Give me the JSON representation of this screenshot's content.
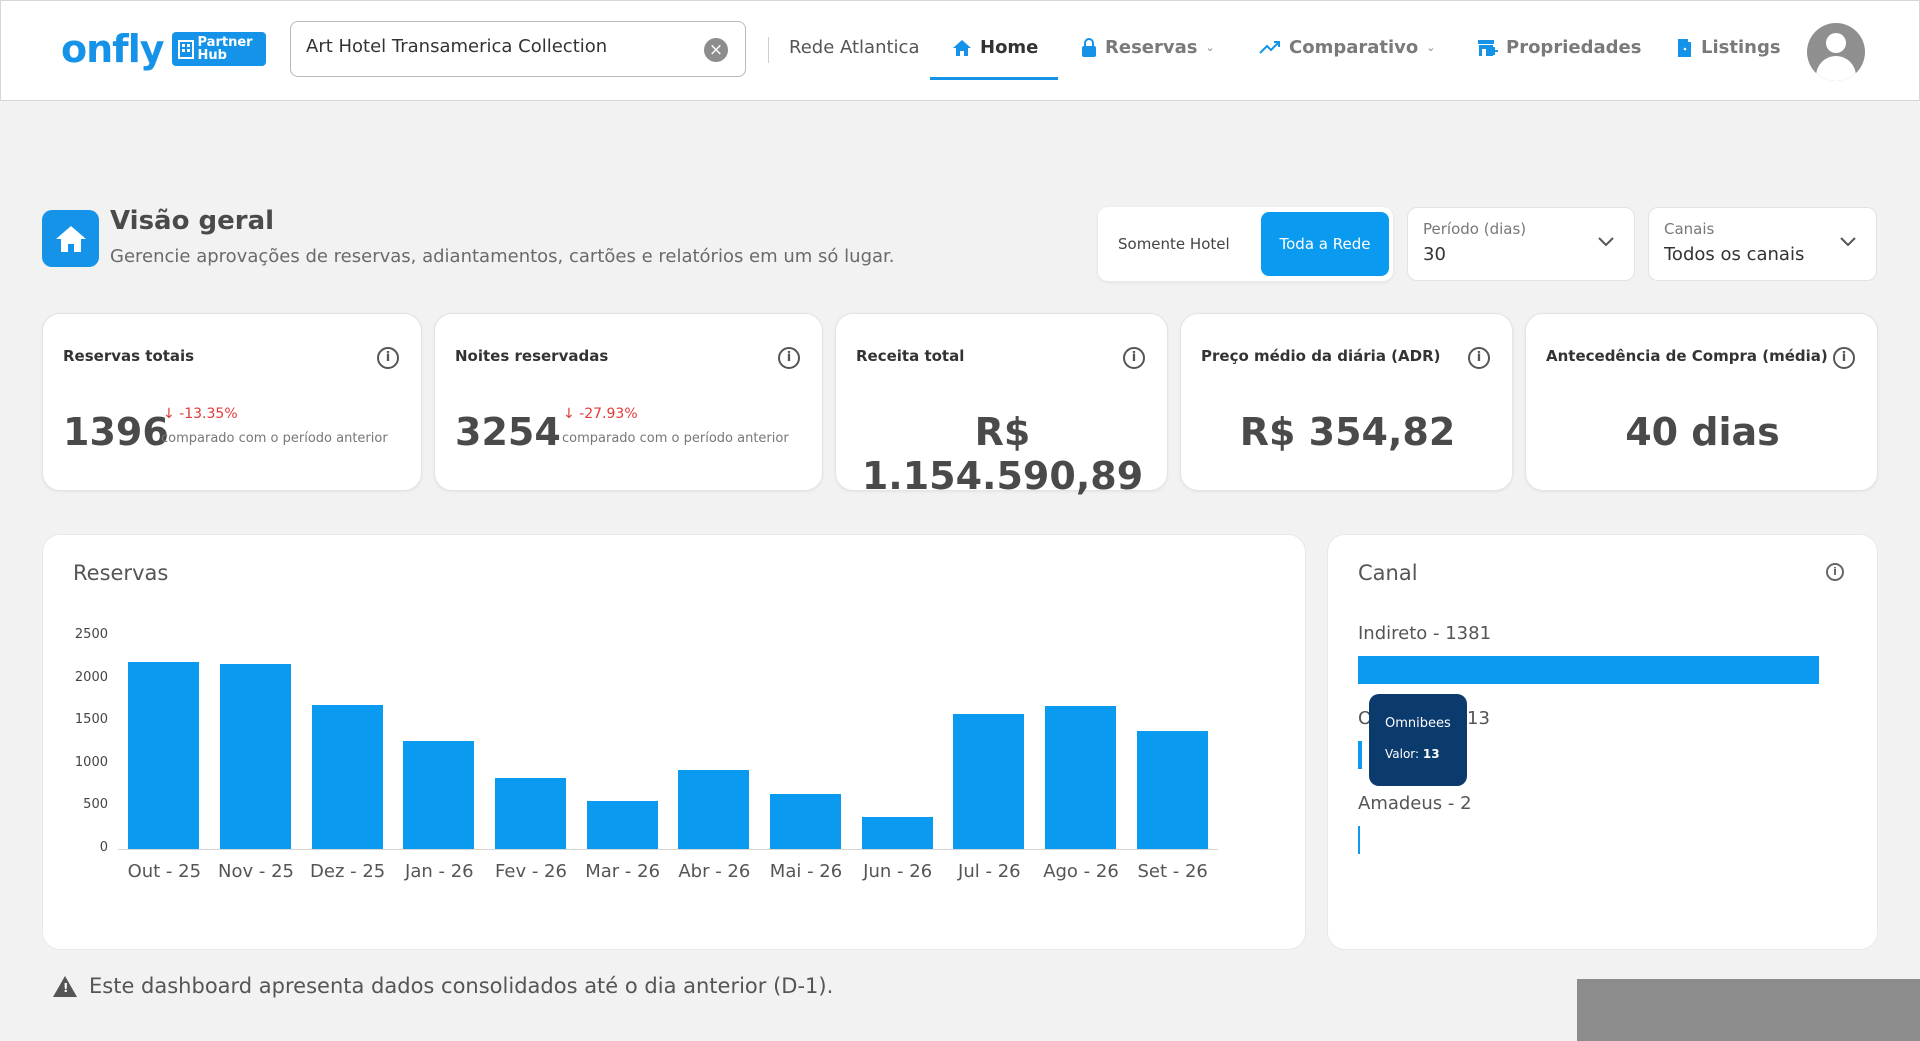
{
  "header": {
    "logo_text": "onfly",
    "logo_badge": "Partner Hub",
    "search_value": "Art Hotel Transamerica Collection",
    "network": "Rede Atlantica",
    "nav": [
      {
        "label": "Home",
        "icon": "home-icon"
      },
      {
        "label": "Reservas",
        "icon": "lock-icon"
      },
      {
        "label": "Comparativo",
        "icon": "trending-up-icon"
      },
      {
        "label": "Propriedades",
        "icon": "store-icon"
      },
      {
        "label": "Listings",
        "icon": "door-icon"
      }
    ]
  },
  "overview": {
    "title": "Visão geral",
    "subtitle": "Gerencie aprovações de reservas, adiantamentos, cartões e relatórios em um só lugar.",
    "toggle": {
      "option1": "Somente Hotel",
      "option2": "Toda a Rede",
      "selected": "Toda a Rede"
    },
    "period": {
      "label": "Período (dias)",
      "value": "30"
    },
    "channels": {
      "label": "Canais",
      "value": "Todos os canais"
    }
  },
  "kpis": [
    {
      "title": "Reservas totais",
      "value": "1396",
      "delta": "-13.35%",
      "compare": "comparado com o período anterior"
    },
    {
      "title": "Noites reservadas",
      "value": "3254",
      "delta": "-27.93%",
      "compare": "comparado com o período anterior"
    },
    {
      "title": "Receita total",
      "value": "R$ 1.154.590,89"
    },
    {
      "title": "Preço médio da diária (ADR)",
      "value": "R$ 354,82"
    },
    {
      "title": "Antecedência de Compra (média)",
      "value": "40 dias"
    }
  ],
  "reservas_panel": {
    "title": "Reservas"
  },
  "canal_panel": {
    "title": "Canal",
    "items": [
      {
        "label": "Indireto - 1381",
        "value": 1381
      },
      {
        "label": "Omnibees - 13",
        "value": 13
      },
      {
        "label": "Amadeus - 2",
        "value": 2
      }
    ],
    "tooltip": {
      "name": "Omnibees",
      "value_label": "Valor:",
      "value": "13"
    }
  },
  "chart_data": {
    "type": "bar",
    "title": "Reservas",
    "categories": [
      "Out - 25",
      "Nov - 25",
      "Dez - 25",
      "Jan - 26",
      "Fev - 26",
      "Mar - 26",
      "Abr - 26",
      "Mai - 26",
      "Jun - 26",
      "Jul - 26",
      "Ago - 26",
      "Set - 26"
    ],
    "values": [
      2190,
      2170,
      1690,
      1270,
      830,
      560,
      930,
      650,
      380,
      1580,
      1680,
      1380
    ],
    "ylim": [
      0,
      2500
    ],
    "yticks": [
      0,
      500,
      1000,
      1500,
      2000,
      2500
    ],
    "color": "#0a9bf0"
  },
  "footer": {
    "note": "Este dashboard apresenta dados consolidados até o dia anterior (D-1)."
  }
}
